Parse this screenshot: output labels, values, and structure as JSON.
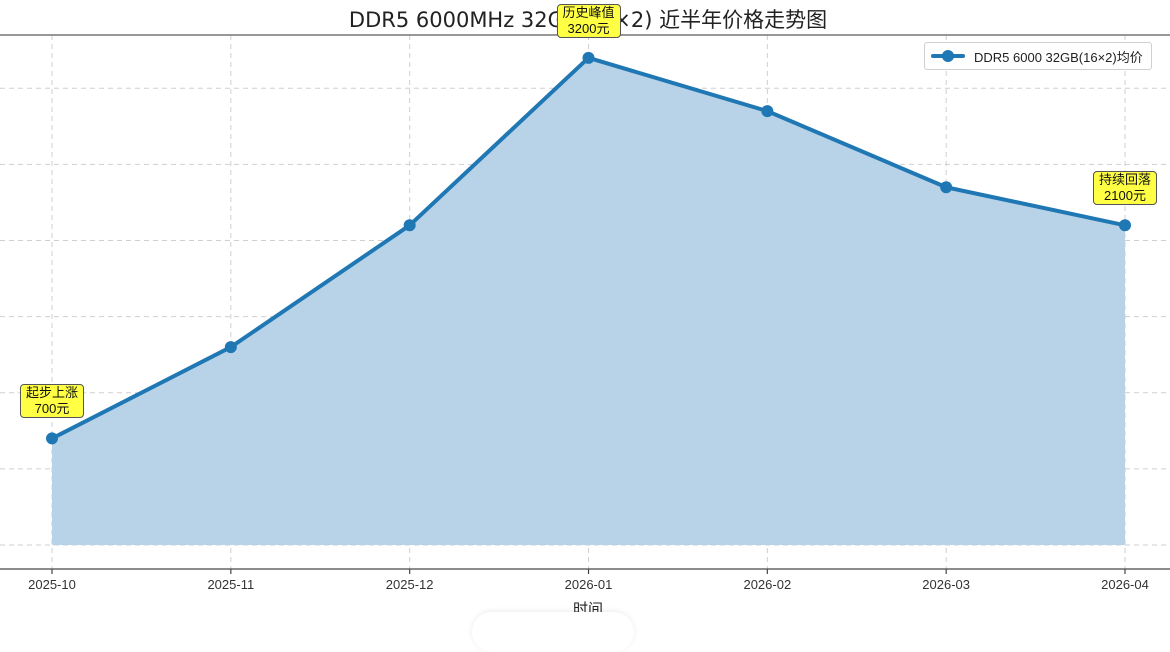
{
  "chart_data": {
    "type": "area",
    "title": "DDR5 6000MHz 32GB(16×2) 近半年价格走势图",
    "xlabel": "时间",
    "ylabel": "",
    "categories": [
      "2025-10",
      "2025-11",
      "2025-12",
      "2026-01",
      "2026-02",
      "2026-03",
      "2026-04"
    ],
    "series": [
      {
        "name": "DDR5 6000 32GB(16×2)均价",
        "values": [
          700,
          1300,
          2100,
          3200,
          2850,
          2350,
          2100
        ],
        "color": "#1f77b4",
        "fill_color": "#b8d3e8",
        "marker": "circle"
      }
    ],
    "ylim": [
      0,
      3350
    ],
    "yticks": [
      0,
      500,
      1000,
      1500,
      2000,
      2500,
      3000
    ],
    "grid": true,
    "grid_style": "dashed",
    "legend_position": "upper right",
    "annotations": [
      {
        "index": 0,
        "label": "起步上涨",
        "value_text": "700元"
      },
      {
        "index": 3,
        "label": "历史峰值",
        "value_text": "3200元"
      },
      {
        "index": 6,
        "label": "持续回落",
        "value_text": "2100元"
      }
    ]
  }
}
